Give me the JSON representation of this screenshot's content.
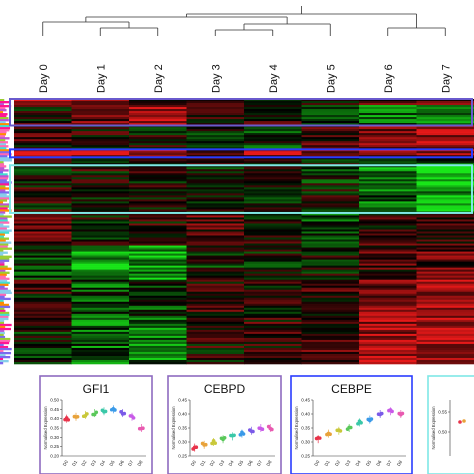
{
  "chart_data": [
    {
      "type": "heatmap",
      "columns": [
        "Day 0",
        "Day 1",
        "Day 2",
        "Day 3",
        "Day 4",
        "Day 5",
        "Day 6",
        "Day 7"
      ],
      "dendrogram": "hierarchical clustering of the 8 day columns",
      "color_scale": {
        "low": "#19e619",
        "mid": "#000000",
        "high": "#e61919"
      },
      "cluster_boxes": [
        {
          "color": "#6a5acd",
          "rows": [
            0.0,
            0.1
          ]
        },
        {
          "color": "#2a3cff",
          "rows": [
            0.19,
            0.22
          ]
        },
        {
          "color": "#7fe8e6",
          "rows": [
            0.25,
            0.43
          ]
        }
      ],
      "patterns": [
        {
          "rows": [
            0.0,
            0.02
          ],
          "values": [
            0.9,
            0.6,
            0.2,
            0.1,
            0.1,
            0.1,
            0.2,
            0.4
          ]
        },
        {
          "rows": [
            0.02,
            0.1
          ],
          "values": [
            0.1,
            0.5,
            0.7,
            0.2,
            0.1,
            -0.2,
            -0.5,
            -0.6
          ]
        },
        {
          "rows": [
            0.1,
            0.19
          ],
          "values": [
            0.2,
            0.1,
            0.0,
            -0.1,
            -0.2,
            0.2,
            0.5,
            0.7
          ]
        },
        {
          "rows": [
            0.19,
            0.22
          ],
          "values": [
            0.8,
            0.7,
            0.8,
            0.5,
            0.6,
            0.7,
            0.6,
            0.5
          ]
        },
        {
          "rows": [
            0.22,
            0.25
          ],
          "values": [
            0.1,
            0.0,
            0.1,
            0.2,
            -0.1,
            0.0,
            -0.2,
            -0.3
          ]
        },
        {
          "rows": [
            0.25,
            0.33
          ],
          "values": [
            0.0,
            0.05,
            0.05,
            -0.05,
            0.0,
            -0.1,
            -0.6,
            -0.9
          ]
        },
        {
          "rows": [
            0.33,
            0.43
          ],
          "values": [
            0.05,
            0.0,
            -0.05,
            0.05,
            -0.1,
            0.0,
            -0.4,
            -0.7
          ]
        },
        {
          "rows": [
            0.43,
            0.55
          ],
          "values": [
            0.4,
            0.0,
            0.1,
            0.3,
            0.1,
            -0.3,
            0.2,
            0.3
          ]
        },
        {
          "rows": [
            0.55,
            0.68
          ],
          "values": [
            -0.2,
            -0.7,
            -0.6,
            -0.1,
            -0.1,
            0.0,
            0.3,
            0.4
          ]
        },
        {
          "rows": [
            0.68,
            0.82
          ],
          "values": [
            0.1,
            -0.3,
            -0.2,
            0.2,
            0.1,
            0.2,
            0.6,
            0.7
          ]
        },
        {
          "rows": [
            0.82,
            1.0
          ],
          "values": [
            -0.1,
            -0.4,
            -0.5,
            0.1,
            0.2,
            0.3,
            0.7,
            0.8
          ]
        }
      ]
    },
    {
      "type": "scatter",
      "title": "GFI1",
      "ylabel": "Normalised Expression",
      "ylim": [
        0.2,
        0.5
      ],
      "yticks": [
        "0.20",
        "0.25",
        "0.30",
        "0.35",
        "0.40",
        "0.45",
        "0.50"
      ],
      "categories": [
        "D0",
        "D1",
        "D2",
        "D3",
        "D4",
        "D5",
        "D6",
        "D7",
        "D8"
      ],
      "values": [
        0.4,
        0.41,
        0.42,
        0.43,
        0.44,
        0.45,
        0.43,
        0.41,
        0.35
      ]
    },
    {
      "type": "scatter",
      "title": "CEBPD",
      "ylabel": "Normalised Expression",
      "ylim": [
        0.25,
        0.45
      ],
      "yticks": [
        "0.25",
        "0.30",
        "0.35",
        "0.40",
        "0.45"
      ],
      "categories": [
        "D0",
        "D1",
        "D2",
        "D3",
        "D4",
        "D5",
        "D6",
        "D7",
        "D8"
      ],
      "values": [
        0.28,
        0.29,
        0.3,
        0.31,
        0.32,
        0.33,
        0.34,
        0.35,
        0.35
      ]
    },
    {
      "type": "scatter",
      "title": "CEBPE",
      "ylabel": "Normalised Expression",
      "ylim": [
        0.25,
        0.45
      ],
      "yticks": [
        "0.25",
        "0.30",
        "0.35",
        "0.40",
        "0.45"
      ],
      "categories": [
        "D0",
        "D1",
        "D2",
        "D3",
        "D4",
        "D5",
        "D6",
        "D7",
        "D8"
      ],
      "values": [
        0.31,
        0.33,
        0.34,
        0.35,
        0.37,
        0.38,
        0.4,
        0.41,
        0.4
      ]
    },
    {
      "type": "scatter",
      "title": "",
      "ylabel": "Normalised Expression",
      "yticks": [
        "0.55",
        "0.50"
      ],
      "categories": [],
      "values": []
    }
  ],
  "panel_colors": [
    "#8e6abf",
    "#8e6abf",
    "#2a3cff",
    "#7fe8e6"
  ],
  "point_colors": [
    "#e8334a",
    "#e8a23a",
    "#c9c83a",
    "#5ac85a",
    "#3ac8a8",
    "#3a9ae8",
    "#7a5ae8",
    "#c85ae8",
    "#e85ab0"
  ]
}
